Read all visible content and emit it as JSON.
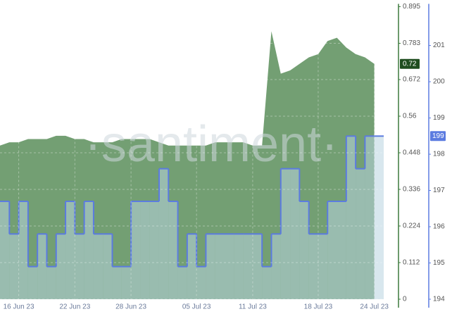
{
  "chart_data": {
    "type": "area-step",
    "watermark": "·santiment·",
    "x": [
      "2023-06-14",
      "2023-06-15",
      "2023-06-16",
      "2023-06-17",
      "2023-06-18",
      "2023-06-19",
      "2023-06-20",
      "2023-06-21",
      "2023-06-22",
      "2023-06-23",
      "2023-06-24",
      "2023-06-25",
      "2023-06-26",
      "2023-06-27",
      "2023-06-28",
      "2023-06-29",
      "2023-06-30",
      "2023-07-01",
      "2023-07-02",
      "2023-07-03",
      "2023-07-04",
      "2023-07-05",
      "2023-07-06",
      "2023-07-07",
      "2023-07-08",
      "2023-07-09",
      "2023-07-10",
      "2023-07-11",
      "2023-07-12",
      "2023-07-13",
      "2023-07-14",
      "2023-07-15",
      "2023-07-16",
      "2023-07-17",
      "2023-07-18",
      "2023-07-19",
      "2023-07-20",
      "2023-07-21",
      "2023-07-22",
      "2023-07-23",
      "2023-07-24"
    ],
    "xlim": [
      "2023-06-14",
      "2023-07-25"
    ],
    "xticks": [
      {
        "value": "2023-06-16",
        "label": "16 Jun 23"
      },
      {
        "value": "2023-06-22",
        "label": "22 Jun 23"
      },
      {
        "value": "2023-06-28",
        "label": "28 Jun 23"
      },
      {
        "value": "2023-07-05",
        "label": "05 Jul 23"
      },
      {
        "value": "2023-07-11",
        "label": "11 Jul 23"
      },
      {
        "value": "2023-07-18",
        "label": "18 Jul 23"
      },
      {
        "value": "2023-07-24",
        "label": "24 Jul 23"
      }
    ],
    "ylim": [
      0,
      0.895
    ],
    "yticks": [
      0,
      0.112,
      0.224,
      0.336,
      0.448,
      0.56,
      0.672,
      0.783,
      0.895
    ],
    "y2lim": [
      194,
      202.07
    ],
    "y2ticks": [
      194,
      195,
      196,
      197,
      198,
      199,
      200,
      201
    ],
    "grid": true,
    "series": [
      {
        "color": "#3d7a3d",
        "badge": "0.72",
        "values": [
          0.47,
          0.48,
          0.48,
          0.49,
          0.49,
          0.49,
          0.5,
          0.5,
          0.49,
          0.49,
          0.48,
          0.48,
          0.48,
          0.49,
          0.49,
          0.49,
          0.49,
          0.48,
          0.47,
          0.47,
          0.47,
          0.47,
          0.47,
          0.48,
          0.48,
          0.48,
          0.48,
          0.47,
          0.47,
          0.82,
          0.69,
          0.7,
          0.72,
          0.74,
          0.75,
          0.79,
          0.8,
          0.77,
          0.75,
          0.74,
          0.72
        ]
      },
      {
        "color": "#5b7be0",
        "axis": "y2",
        "badge": "199",
        "values": [
          196.7,
          195.8,
          196.7,
          194.9,
          195.8,
          194.9,
          195.8,
          196.7,
          195.8,
          196.7,
          195.8,
          195.8,
          194.9,
          194.9,
          196.7,
          196.7,
          196.7,
          197.6,
          196.7,
          194.9,
          195.8,
          194.9,
          195.8,
          195.8,
          195.8,
          195.8,
          195.8,
          195.8,
          194.9,
          195.8,
          197.6,
          197.6,
          196.7,
          195.8,
          195.8,
          196.7,
          196.7,
          198.5,
          197.6,
          198.5,
          198.5
        ]
      }
    ]
  }
}
